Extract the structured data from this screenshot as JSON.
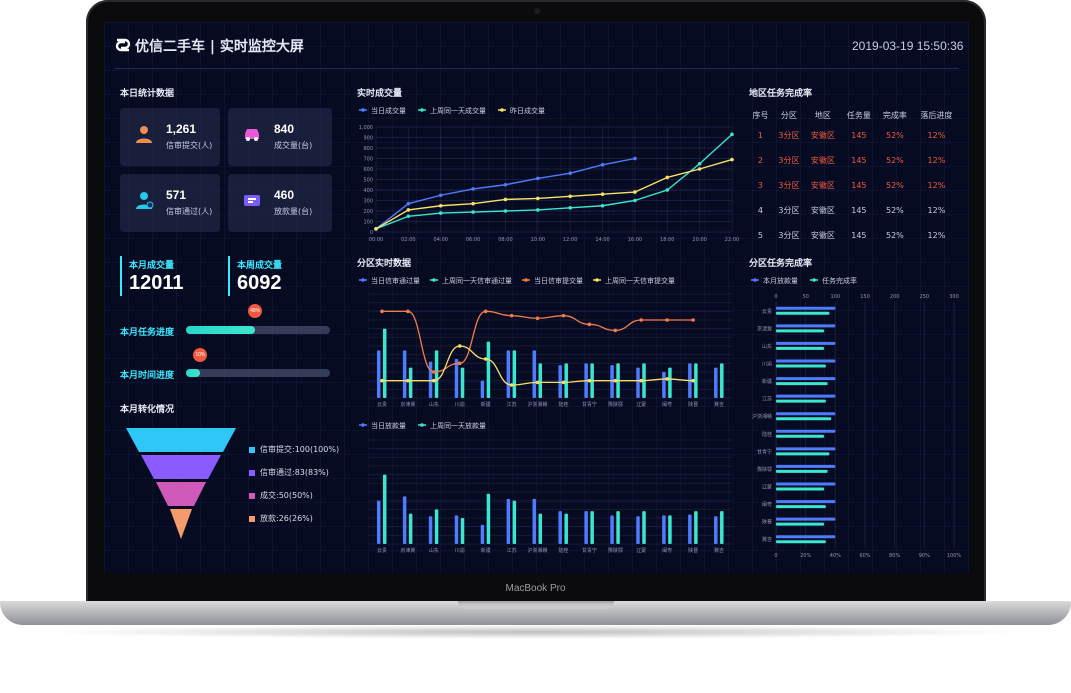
{
  "device": {
    "label": "MacBook Pro"
  },
  "header": {
    "title": "优信二手车 | 实时监控大屏",
    "datetime": "2019-03-19 15:50:36"
  },
  "stats": {
    "section_title": "本日统计数据",
    "cards": [
      {
        "value": "1,261",
        "label": "信审提交(人)",
        "icon": "person-icon",
        "color": "#f08c4f"
      },
      {
        "value": "840",
        "label": "成交量(台)",
        "icon": "car-icon",
        "color": "#e45ad8"
      },
      {
        "value": "571",
        "label": "信审通过(人)",
        "icon": "person-check-icon",
        "color": "#27c7ea"
      },
      {
        "value": "460",
        "label": "放款量(台)",
        "icon": "money-icon",
        "color": "#7a5cff"
      }
    ]
  },
  "monthly": {
    "label": "本月成交量",
    "value": "12011"
  },
  "weekly": {
    "label": "本周成交量",
    "value": "6092"
  },
  "progress": [
    {
      "label": "本月任务进度",
      "percent_text": "48%",
      "value": 0.48
    },
    {
      "label": "本月时间进度",
      "percent_text": "10%",
      "value": 0.1
    }
  ],
  "funnel": {
    "title": "本月转化情况",
    "items": [
      {
        "label": "信审提交:100(100%)",
        "value": 100,
        "color": "#2fc7f5"
      },
      {
        "label": "信审通过:83(83%)",
        "value": 83,
        "color": "#8a5cff"
      },
      {
        "label": "成交:50(50%)",
        "value": 50,
        "color": "#d05ab9"
      },
      {
        "label": "放款:26(26%)",
        "value": 26,
        "color": "#f39b6b"
      }
    ]
  },
  "realtime_chart": {
    "title": "实时成交量",
    "legend": [
      "当日成交量",
      "上周同一天成交量",
      "昨日成交量"
    ],
    "colors": [
      "#4f7cff",
      "#3be6cf",
      "#f8e166"
    ],
    "y_ticks": [
      "1,000",
      "900",
      "800",
      "700",
      "600",
      "500",
      "400",
      "300",
      "200",
      "100",
      "0"
    ],
    "x_ticks": [
      "00:00",
      "02:00",
      "04:00",
      "06:00",
      "08:00",
      "10:00",
      "12:00",
      "14:00",
      "16:00",
      "18:00",
      "20:00",
      "22:00"
    ]
  },
  "district_chart": {
    "title": "分区实时数据",
    "legend": [
      "当日信审通过量",
      "上周同一天信审通过量",
      "当日信审提交量",
      "上周同一天信审提交量"
    ],
    "colors": [
      "#4f7cff",
      "#3be6cf",
      "#f17c4a",
      "#f8e166"
    ],
    "categories": [
      "云贵",
      "京津冀",
      "山东",
      "川渝",
      "新疆",
      "江苏",
      "沪浙湘赣",
      "陆桂",
      "甘青宁",
      "豫陕鄂",
      "辽蒙",
      "闽粤",
      "陕晋",
      "冀吉"
    ]
  },
  "loan_chart": {
    "legend": [
      "当日放款量",
      "上周同一天放款量"
    ],
    "colors": [
      "#4f7cff",
      "#3be6cf"
    ],
    "categories": [
      "云贵",
      "京津冀",
      "山东",
      "川渝",
      "新疆",
      "江苏",
      "沪浙湘赣",
      "陆桂",
      "甘青宁",
      "豫陕鄂",
      "辽蒙",
      "闽粤",
      "陕晋",
      "冀吉"
    ]
  },
  "region_table": {
    "title": "地区任务完成率",
    "columns": [
      "序号",
      "分区",
      "地区",
      "任务量",
      "完成率",
      "落后进度"
    ],
    "rows": [
      {
        "no": "1",
        "zone": "3分区",
        "area": "安徽区",
        "task": "145",
        "rate": "52%",
        "lag": "12%",
        "highlight": true
      },
      {
        "no": "2",
        "zone": "3分区",
        "area": "安徽区",
        "task": "145",
        "rate": "52%",
        "lag": "12%",
        "highlight": true
      },
      {
        "no": "3",
        "zone": "3分区",
        "area": "安徽区",
        "task": "145",
        "rate": "52%",
        "lag": "12%",
        "highlight": true
      },
      {
        "no": "4",
        "zone": "3分区",
        "area": "安徽区",
        "task": "145",
        "rate": "52%",
        "lag": "12%",
        "highlight": false
      },
      {
        "no": "5",
        "zone": "3分区",
        "area": "安徽区",
        "task": "145",
        "rate": "52%",
        "lag": "12%",
        "highlight": false
      }
    ]
  },
  "zone_rate_chart": {
    "title": "分区任务完成率",
    "legend": [
      "本月放款量",
      "任务完成率"
    ],
    "colors": [
      "#4f7cff",
      "#3be6cf"
    ],
    "top_ticks": [
      "0",
      "50",
      "100",
      "150",
      "200",
      "250",
      "300"
    ],
    "bottom_ticks": [
      "0",
      "20%",
      "40%",
      "60%",
      "80%",
      "90%",
      "100%"
    ],
    "categories": [
      "云贵",
      "京津冀",
      "山东",
      "川渝",
      "新疆",
      "江苏",
      "沪浙湘赣",
      "陆桂",
      "甘青宁",
      "豫陕鄂",
      "辽蒙",
      "闽粤",
      "陕晋",
      "冀吉"
    ]
  },
  "chart_data": [
    {
      "type": "line",
      "title": "实时成交量",
      "x": [
        "00:00",
        "02:00",
        "04:00",
        "06:00",
        "08:00",
        "10:00",
        "12:00",
        "14:00",
        "16:00",
        "18:00",
        "20:00",
        "22:00"
      ],
      "ylim": [
        0,
        1000
      ],
      "series": [
        {
          "name": "当日成交量",
          "values": [
            30,
            270,
            350,
            410,
            450,
            510,
            560,
            640,
            700,
            null,
            null,
            null
          ]
        },
        {
          "name": "上周同一天成交量",
          "values": [
            30,
            150,
            180,
            190,
            200,
            210,
            230,
            250,
            300,
            400,
            650,
            930
          ]
        },
        {
          "name": "昨日成交量",
          "values": [
            30,
            210,
            250,
            270,
            310,
            320,
            340,
            360,
            380,
            520,
            600,
            690
          ]
        }
      ]
    },
    {
      "type": "bar",
      "title": "分区实时数据",
      "categories": [
        "云贵",
        "京津冀",
        "山东",
        "川渝",
        "新疆",
        "江苏",
        "沪浙湘赣",
        "陆桂",
        "甘青宁",
        "豫陕鄂",
        "辽蒙",
        "闽粤",
        "陕晋",
        "冀吉"
      ],
      "series": [
        {
          "name": "当日信审通过量",
          "values": [
            55,
            55,
            42,
            45,
            20,
            55,
            55,
            38,
            40,
            38,
            35,
            30,
            40,
            35
          ]
        },
        {
          "name": "上周同一天信审通过量",
          "values": [
            80,
            35,
            55,
            35,
            65,
            55,
            40,
            40,
            40,
            40,
            40,
            35,
            40,
            40
          ]
        },
        {
          "name": "当日信审提交量",
          "values": [
            100,
            100,
            30,
            40,
            100,
            95,
            92,
            95,
            85,
            78,
            90,
            90,
            90,
            null
          ]
        },
        {
          "name": "上周同一天信审提交量",
          "values": [
            20,
            20,
            20,
            60,
            45,
            15,
            18,
            18,
            20,
            20,
            20,
            22,
            20,
            null
          ]
        }
      ]
    },
    {
      "type": "bar",
      "title": "",
      "categories": [
        "云贵",
        "京津冀",
        "山东",
        "川渝",
        "新疆",
        "江苏",
        "沪浙湘赣",
        "陆桂",
        "甘青宁",
        "豫陕鄂",
        "辽蒙",
        "闽粤",
        "陕晋",
        "冀吉"
      ],
      "series": [
        {
          "name": "当日放款量",
          "values": [
            50,
            55,
            32,
            33,
            22,
            52,
            52,
            38,
            38,
            33,
            32,
            33,
            34,
            32
          ]
        },
        {
          "name": "上周同一天放款量",
          "values": [
            80,
            35,
            40,
            30,
            58,
            50,
            35,
            35,
            38,
            38,
            38,
            33,
            38,
            38
          ]
        }
      ]
    },
    {
      "type": "bar",
      "title": "分区任务完成率",
      "categories": [
        "云贵",
        "京津冀",
        "山东",
        "川渝",
        "新疆",
        "江苏",
        "沪浙湘赣",
        "陆桂",
        "甘青宁",
        "豫陕鄂",
        "辽蒙",
        "闽粤",
        "陕晋",
        "冀吉"
      ],
      "series": [
        {
          "name": "本月放款量",
          "values": [
            100,
            100,
            100,
            100,
            100,
            100,
            100,
            100,
            100,
            100,
            100,
            100,
            100,
            100
          ]
        },
        {
          "name": "任务完成率",
          "values": [
            30,
            27,
            27,
            28,
            29,
            28,
            31,
            27,
            30,
            29,
            27,
            28,
            27,
            28
          ]
        }
      ]
    }
  ]
}
